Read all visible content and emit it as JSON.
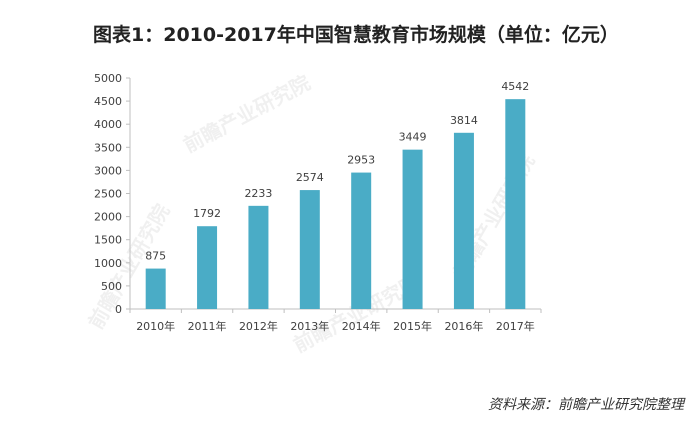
{
  "title": "图表1：2010-2017年中国智慧教育市场规模（单位：亿元）",
  "source": "资料来源：前瞻产业研究院整理",
  "watermark_text": "前瞻产业研究院",
  "colors": {
    "bar": "#4aacc6",
    "axis": "#bfbfbf",
    "text": "#404040"
  },
  "chart_data": {
    "type": "bar",
    "categories": [
      "2010年",
      "2011年",
      "2012年",
      "2013年",
      "2014年",
      "2015年",
      "2016年",
      "2017年"
    ],
    "values": [
      875,
      1792,
      2233,
      2574,
      2953,
      3449,
      3814,
      4542
    ],
    "ylim": [
      0,
      5000
    ],
    "yticks": [
      0,
      500,
      1000,
      1500,
      2000,
      2500,
      3000,
      3500,
      4000,
      4500,
      5000
    ],
    "grid": false,
    "legend": "none",
    "data_labels": true
  }
}
